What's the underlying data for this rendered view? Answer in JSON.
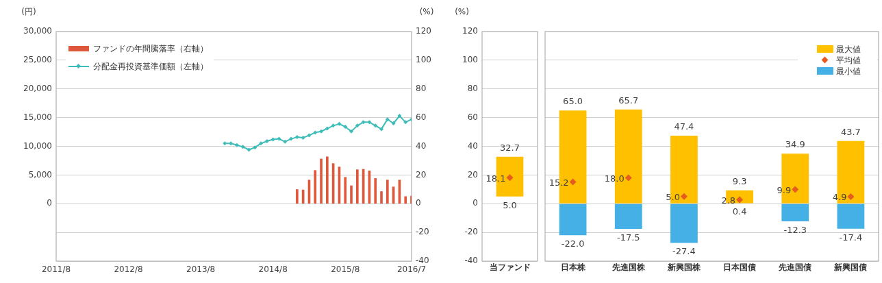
{
  "chart_data": [
    {
      "type": "bar",
      "ylabel": "(円)",
      "y2label": "(%)",
      "xlim": [
        "2011-08",
        "2016-07"
      ],
      "xticks": [
        {
          "value": "2011-08",
          "label": "2011/8"
        },
        {
          "value": "2012-08",
          "label": "2012/8"
        },
        {
          "value": "2013-08",
          "label": "2013/8"
        },
        {
          "value": "2014-08",
          "label": "2014/8"
        },
        {
          "value": "2015-08",
          "label": "2015/8"
        },
        {
          "value": "2016-07",
          "label": "2016/7"
        }
      ],
      "ylim": [
        -10000,
        30000
      ],
      "yticks": [
        0,
        {
          "value": 5000,
          "label": "5,000"
        },
        {
          "value": 10000,
          "label": "10,000"
        },
        {
          "value": 15000,
          "label": "15,000"
        },
        {
          "value": 20000,
          "label": "20,000"
        },
        {
          "value": 25000,
          "label": "25,000"
        },
        {
          "value": 30000,
          "label": "30,000"
        }
      ],
      "y2lim": [
        -40,
        120
      ],
      "y2ticks": [
        -40,
        -20,
        0,
        20,
        40,
        60,
        80,
        100,
        120
      ],
      "grid": "y",
      "legend": "top left",
      "series": [
        {
          "name": "ファンドの年間騰落率（右軸）",
          "axis": "y2",
          "color": "#e0583c",
          "x": [
            "2014-12",
            "2015-01",
            "2015-02",
            "2015-03",
            "2015-04",
            "2015-05",
            "2015-06",
            "2015-07",
            "2015-08",
            "2015-09",
            "2015-10",
            "2015-11",
            "2015-12",
            "2016-01",
            "2016-02",
            "2016-03",
            "2016-04",
            "2016-05",
            "2016-06",
            "2016-07"
          ],
          "values": [
            9.9,
            9.6,
            16.5,
            23.2,
            31.2,
            32.7,
            28.0,
            25.6,
            18.4,
            12.5,
            23.7,
            24.0,
            22.9,
            17.6,
            8.5,
            16.5,
            11.7,
            16.5,
            5.0,
            5.3
          ]
        },
        {
          "name": "分配金再投資基準価額（左軸）",
          "type": "line",
          "axis": "y",
          "color": "#3dbcb8",
          "marker": "diamond",
          "x": [
            "2013-12",
            "2014-01",
            "2014-02",
            "2014-03",
            "2014-04",
            "2014-05",
            "2014-06",
            "2014-07",
            "2014-08",
            "2014-09",
            "2014-10",
            "2014-11",
            "2014-12",
            "2015-01",
            "2015-02",
            "2015-03",
            "2015-04",
            "2015-05",
            "2015-06",
            "2015-07",
            "2015-08",
            "2015-09",
            "2015-10",
            "2015-11",
            "2015-12",
            "2016-01",
            "2016-02",
            "2016-03",
            "2016-04",
            "2016-05",
            "2016-06",
            "2016-07"
          ],
          "values": [
            10500,
            10500,
            10200,
            9900,
            9400,
            9800,
            10500,
            10900,
            11200,
            11300,
            10800,
            11300,
            11600,
            11500,
            11900,
            12400,
            12600,
            13100,
            13600,
            13900,
            13400,
            12600,
            13600,
            14200,
            14200,
            13600,
            13000,
            14700,
            14000,
            15300,
            14200,
            14700
          ]
        }
      ]
    },
    {
      "type": "bar",
      "ylabel": "(%)",
      "categories": [
        "当ファンド"
      ],
      "ylim": [
        -40,
        120
      ],
      "yticks": [
        -40,
        -20,
        0,
        20,
        40,
        60,
        80,
        100,
        120
      ],
      "grid": "y",
      "series": [
        {
          "color": "#ffc000",
          "base": [
            5.0
          ],
          "values": [
            27.7
          ],
          "value_labels": [
            "32.7"
          ]
        },
        {
          "type": "scatter",
          "marker": "diamond",
          "color": "#e65c1e",
          "x": [
            "当ファンド"
          ],
          "values": [
            18.1
          ],
          "value_labels": [
            "18.1"
          ]
        }
      ],
      "annotations": [
        {
          "text": "5.0",
          "x": "当ファンド",
          "y": 5.0
        }
      ]
    },
    {
      "type": "bar",
      "categories": [
        "日本株",
        "先進国株",
        "新興国株",
        "日本国債",
        "先進国債",
        "新興国債"
      ],
      "ylim": [
        -40,
        120
      ],
      "yticks": [
        -40,
        -20,
        0,
        20,
        40,
        60,
        80,
        100,
        120
      ],
      "grid": "y",
      "tick_labels": "x",
      "legend": "top right",
      "series": [
        {
          "name": "最大値",
          "color": "#ffc000",
          "base": [
            0,
            0,
            0,
            0.4,
            0,
            0
          ],
          "values": [
            65.0,
            65.7,
            47.4,
            8.9,
            34.9,
            43.7
          ],
          "value_labels": [
            "65.0",
            "65.7",
            "47.4",
            "9.3",
            "34.9",
            "43.7"
          ]
        },
        {
          "name": "最小値",
          "color": "#45b0e6",
          "values": [
            -22.0,
            -17.5,
            -27.4,
            null,
            -12.3,
            -17.4
          ],
          "value_labels": [
            "-22.0",
            "-17.5",
            "-27.4",
            null,
            "-12.3",
            "-17.4"
          ]
        },
        {
          "name": "平均値",
          "type": "scatter",
          "marker": "diamond",
          "color": "#e65c1e",
          "x": [
            "日本株",
            "先進国株",
            "新興国株",
            "日本国債",
            "先進国債",
            "新興国債"
          ],
          "values": [
            15.2,
            18.0,
            5.0,
            2.8,
            9.9,
            4.9
          ],
          "value_labels": [
            "15.2",
            "18.0",
            "5.0",
            "2.8",
            "9.9",
            "4.9"
          ]
        }
      ],
      "annotations": [
        {
          "text": "0.4",
          "x": "日本国債",
          "y": 0.4
        }
      ]
    }
  ]
}
